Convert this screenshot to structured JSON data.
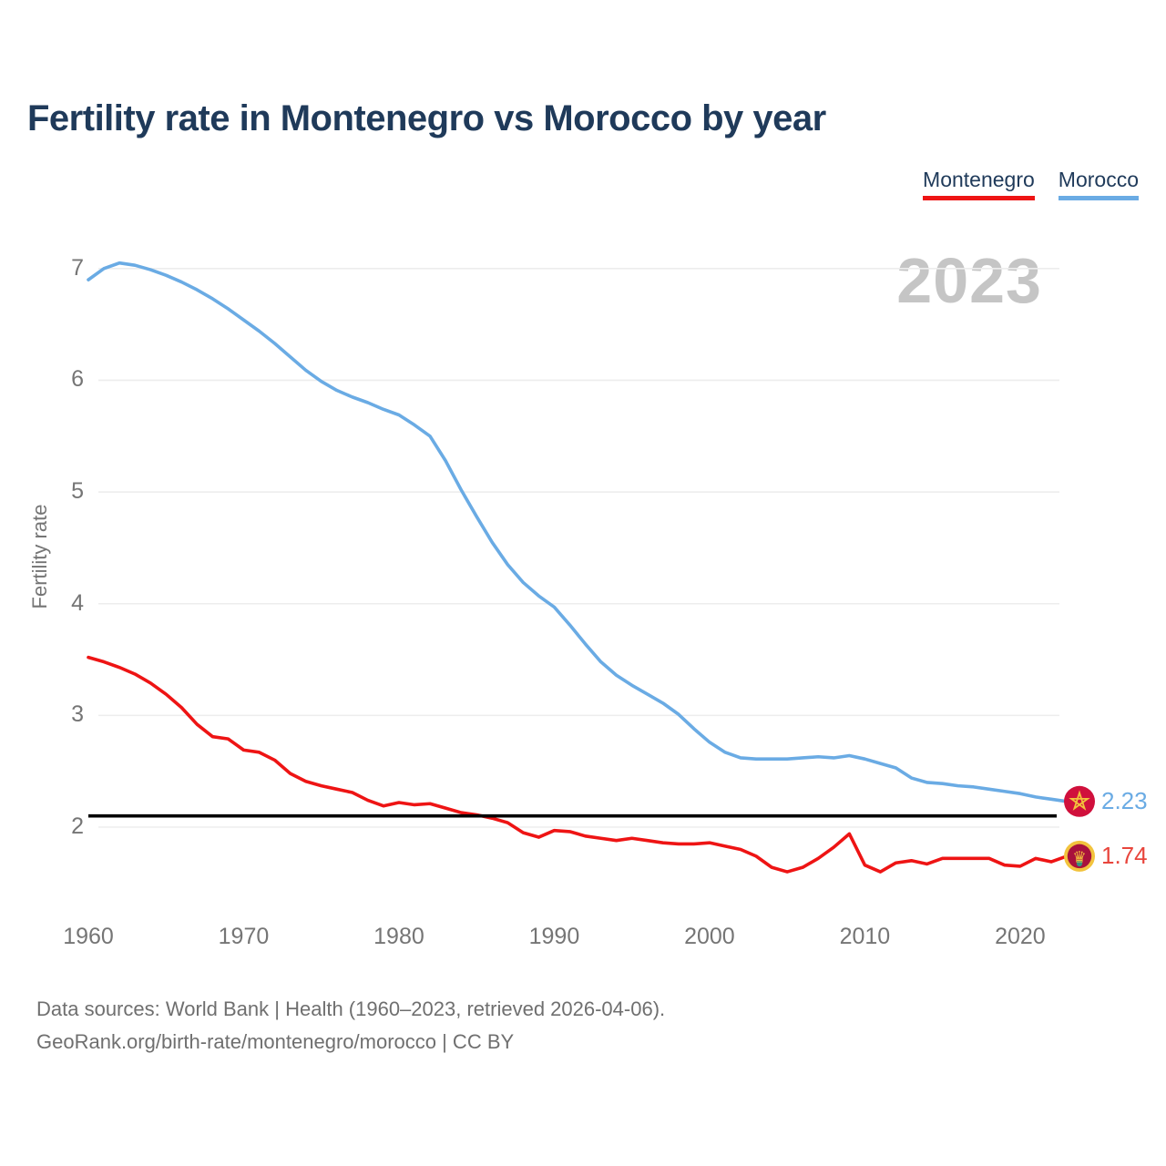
{
  "header": {
    "title": "Fertility rate in Montenegro vs Morocco by year"
  },
  "legend": [
    {
      "label": "Montenegro",
      "color": "#ee1414"
    },
    {
      "label": "Morocco",
      "color": "#6aabe4"
    }
  ],
  "watermark": "2023",
  "y_axis": {
    "label": "Fertility rate",
    "ticks": [
      7,
      6,
      5,
      4,
      3,
      2
    ]
  },
  "x_axis": {
    "ticks": [
      1960,
      1970,
      1980,
      1990,
      2000,
      2010,
      2020
    ]
  },
  "end_labels": [
    {
      "series": "Morocco",
      "value": "2.23",
      "color": "#6aabe4",
      "icon": "morocco-flag-star-badge"
    },
    {
      "series": "Montenegro",
      "value": "1.74",
      "color": "#e8453c",
      "icon": "montenegro-flag-crown-badge"
    }
  ],
  "footer": {
    "line1": "Data sources: World Bank | Health (1960–2023, retrieved 2026-04-06).",
    "line2": "GeoRank.org/birth-rate/montenegro/morocco | CC BY"
  },
  "colors": {
    "title_text": "#1f3a5a",
    "axis_text": "#757575",
    "gridline": "#ededed",
    "watermark": "#c5c5c5",
    "replacement_line": "#000000",
    "montenegro_red": "#ee1414",
    "morocco_blue": "#6aabe4",
    "morocco_badge_red": "#d0103c",
    "badge_gold": "#f2c33d",
    "montenegro_badge_inner": "#a8113c"
  },
  "chart_data": {
    "type": "line",
    "title": "Fertility rate in Montenegro vs Morocco by year",
    "xlabel": "",
    "ylabel": "Fertility rate",
    "grid": "horizontal",
    "legend_position": "top-right",
    "yticks": [
      2,
      3,
      4,
      5,
      6,
      7
    ],
    "xticks": [
      1960,
      1970,
      1980,
      1990,
      2000,
      2010,
      2020
    ],
    "ylim": [
      1.45,
      7.3
    ],
    "xlim": [
      1960,
      2023
    ],
    "annotations": {
      "replacement_level_line": 2.1,
      "year_watermark": "2023"
    },
    "x": [
      1960,
      1961,
      1962,
      1963,
      1964,
      1965,
      1966,
      1967,
      1968,
      1969,
      1970,
      1971,
      1972,
      1973,
      1974,
      1975,
      1976,
      1977,
      1978,
      1979,
      1980,
      1981,
      1982,
      1983,
      1984,
      1985,
      1986,
      1987,
      1988,
      1989,
      1990,
      1991,
      1992,
      1993,
      1994,
      1995,
      1996,
      1997,
      1998,
      1999,
      2000,
      2001,
      2002,
      2003,
      2004,
      2005,
      2006,
      2007,
      2008,
      2009,
      2010,
      2011,
      2012,
      2013,
      2014,
      2015,
      2016,
      2017,
      2018,
      2019,
      2020,
      2021,
      2022,
      2023
    ],
    "series": [
      {
        "name": "Montenegro",
        "color": "#ee1414",
        "end_value": 1.74,
        "values": [
          3.52,
          3.48,
          3.43,
          3.37,
          3.29,
          3.19,
          3.07,
          2.92,
          2.81,
          2.79,
          2.69,
          2.67,
          2.6,
          2.48,
          2.41,
          2.37,
          2.34,
          2.31,
          2.24,
          2.19,
          2.22,
          2.2,
          2.21,
          2.17,
          2.13,
          2.11,
          2.08,
          2.04,
          1.95,
          1.91,
          1.97,
          1.96,
          1.92,
          1.9,
          1.88,
          1.9,
          1.88,
          1.86,
          1.85,
          1.85,
          1.86,
          1.83,
          1.8,
          1.74,
          1.64,
          1.6,
          1.64,
          1.72,
          1.82,
          1.94,
          1.66,
          1.6,
          1.68,
          1.7,
          1.67,
          1.72,
          1.72,
          1.72,
          1.72,
          1.66,
          1.65,
          1.72,
          1.69,
          1.74
        ]
      },
      {
        "name": "Morocco",
        "color": "#6aabe4",
        "end_value": 2.23,
        "values": [
          6.9,
          7.0,
          7.05,
          7.03,
          6.99,
          6.94,
          6.88,
          6.81,
          6.73,
          6.64,
          6.54,
          6.44,
          6.33,
          6.21,
          6.09,
          5.99,
          5.91,
          5.85,
          5.8,
          5.74,
          5.69,
          5.6,
          5.5,
          5.28,
          5.02,
          4.78,
          4.55,
          4.35,
          4.19,
          4.07,
          3.97,
          3.81,
          3.64,
          3.48,
          3.36,
          3.27,
          3.19,
          3.11,
          3.01,
          2.88,
          2.76,
          2.67,
          2.62,
          2.61,
          2.61,
          2.61,
          2.62,
          2.63,
          2.62,
          2.64,
          2.61,
          2.57,
          2.53,
          2.44,
          2.4,
          2.39,
          2.37,
          2.36,
          2.34,
          2.32,
          2.3,
          2.27,
          2.25,
          2.23
        ]
      }
    ]
  }
}
